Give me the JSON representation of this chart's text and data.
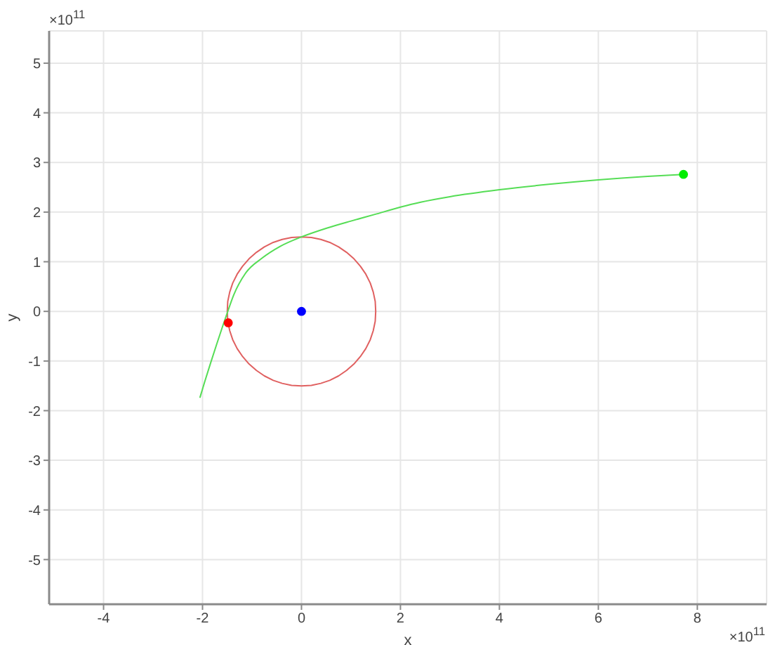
{
  "chart_data": {
    "type": "line",
    "xlabel": "x",
    "ylabel": "y",
    "annotations": [
      "×10$^{11}$",
      "×10$^{11}$"
    ],
    "xlim": [
      -5.1,
      9.4
    ],
    "ylim": [
      -5.9,
      5.65
    ],
    "xticks": [
      -4,
      -2,
      0,
      2,
      4,
      6,
      8
    ],
    "yticks": [
      -5,
      -4,
      -3,
      -2,
      -1,
      0,
      1,
      2,
      3,
      4,
      5
    ],
    "grid": true,
    "line_style": "solid",
    "series": [
      {
        "color": "#e06060",
        "x": [
          1.5,
          1.49,
          1.45,
          1.39,
          1.3,
          1.19,
          1.06,
          0.91,
          0.75,
          0.57,
          0.39,
          0.2,
          0,
          -0.2,
          -0.39,
          -0.57,
          -0.75,
          -0.91,
          -1.06,
          -1.19,
          -1.3,
          -1.39,
          -1.45,
          -1.49,
          -1.5,
          -1.49,
          -1.45,
          -1.39,
          -1.3,
          -1.19,
          -1.06,
          -0.91,
          -0.75,
          -0.57,
          -0.39,
          -0.2,
          0,
          0.2,
          0.39,
          0.57,
          0.75,
          0.91,
          1.06,
          1.19,
          1.3,
          1.39,
          1.45,
          1.49,
          1.5,
          1.49
        ],
        "values": [
          0,
          0.2,
          0.39,
          0.57,
          0.75,
          0.91,
          1.06,
          1.19,
          1.3,
          1.39,
          1.45,
          1.49,
          1.5,
          1.49,
          1.45,
          1.39,
          1.3,
          1.19,
          1.06,
          0.91,
          0.75,
          0.57,
          0.39,
          0.2,
          0,
          -0.2,
          -0.39,
          -0.57,
          -0.75,
          -0.91,
          -1.06,
          -1.19,
          -1.3,
          -1.39,
          -1.45,
          -1.49,
          -1.5,
          -1.49,
          -1.45,
          -1.39,
          -1.3,
          -1.19,
          -1.06,
          -0.91,
          -0.75,
          -0.57,
          -0.39,
          -0.2,
          0,
          0.2
        ]
      },
      {
        "color": "#55dd55",
        "x": [
          -2.05,
          -1.95,
          -1.84,
          -1.72,
          -1.6,
          -1.51,
          -1.37,
          -1.13,
          -0.8,
          -0.43,
          0,
          0.52,
          1,
          1.47,
          2,
          2.41,
          3,
          4,
          5,
          6,
          7,
          7.72
        ],
        "values": [
          -1.73,
          -1.4,
          -1.05,
          -0.68,
          -0.32,
          -0.06,
          0.33,
          0.77,
          1.07,
          1.31,
          1.5,
          1.68,
          1.82,
          1.95,
          2.1,
          2.2,
          2.31,
          2.45,
          2.56,
          2.65,
          2.72,
          2.76
        ]
      },
      {
        "type": "scatter",
        "marker": "circle",
        "color": "#ff0000",
        "x": [
          -1.48
        ],
        "values": [
          -0.23
        ]
      },
      {
        "type": "scatter",
        "marker": "circle",
        "color": "#0000ff",
        "x": [
          0
        ],
        "values": [
          0
        ]
      },
      {
        "type": "scatter",
        "marker": "circle",
        "color": "#00ee00",
        "x": [
          7.72
        ],
        "values": [
          2.76
        ]
      }
    ]
  }
}
